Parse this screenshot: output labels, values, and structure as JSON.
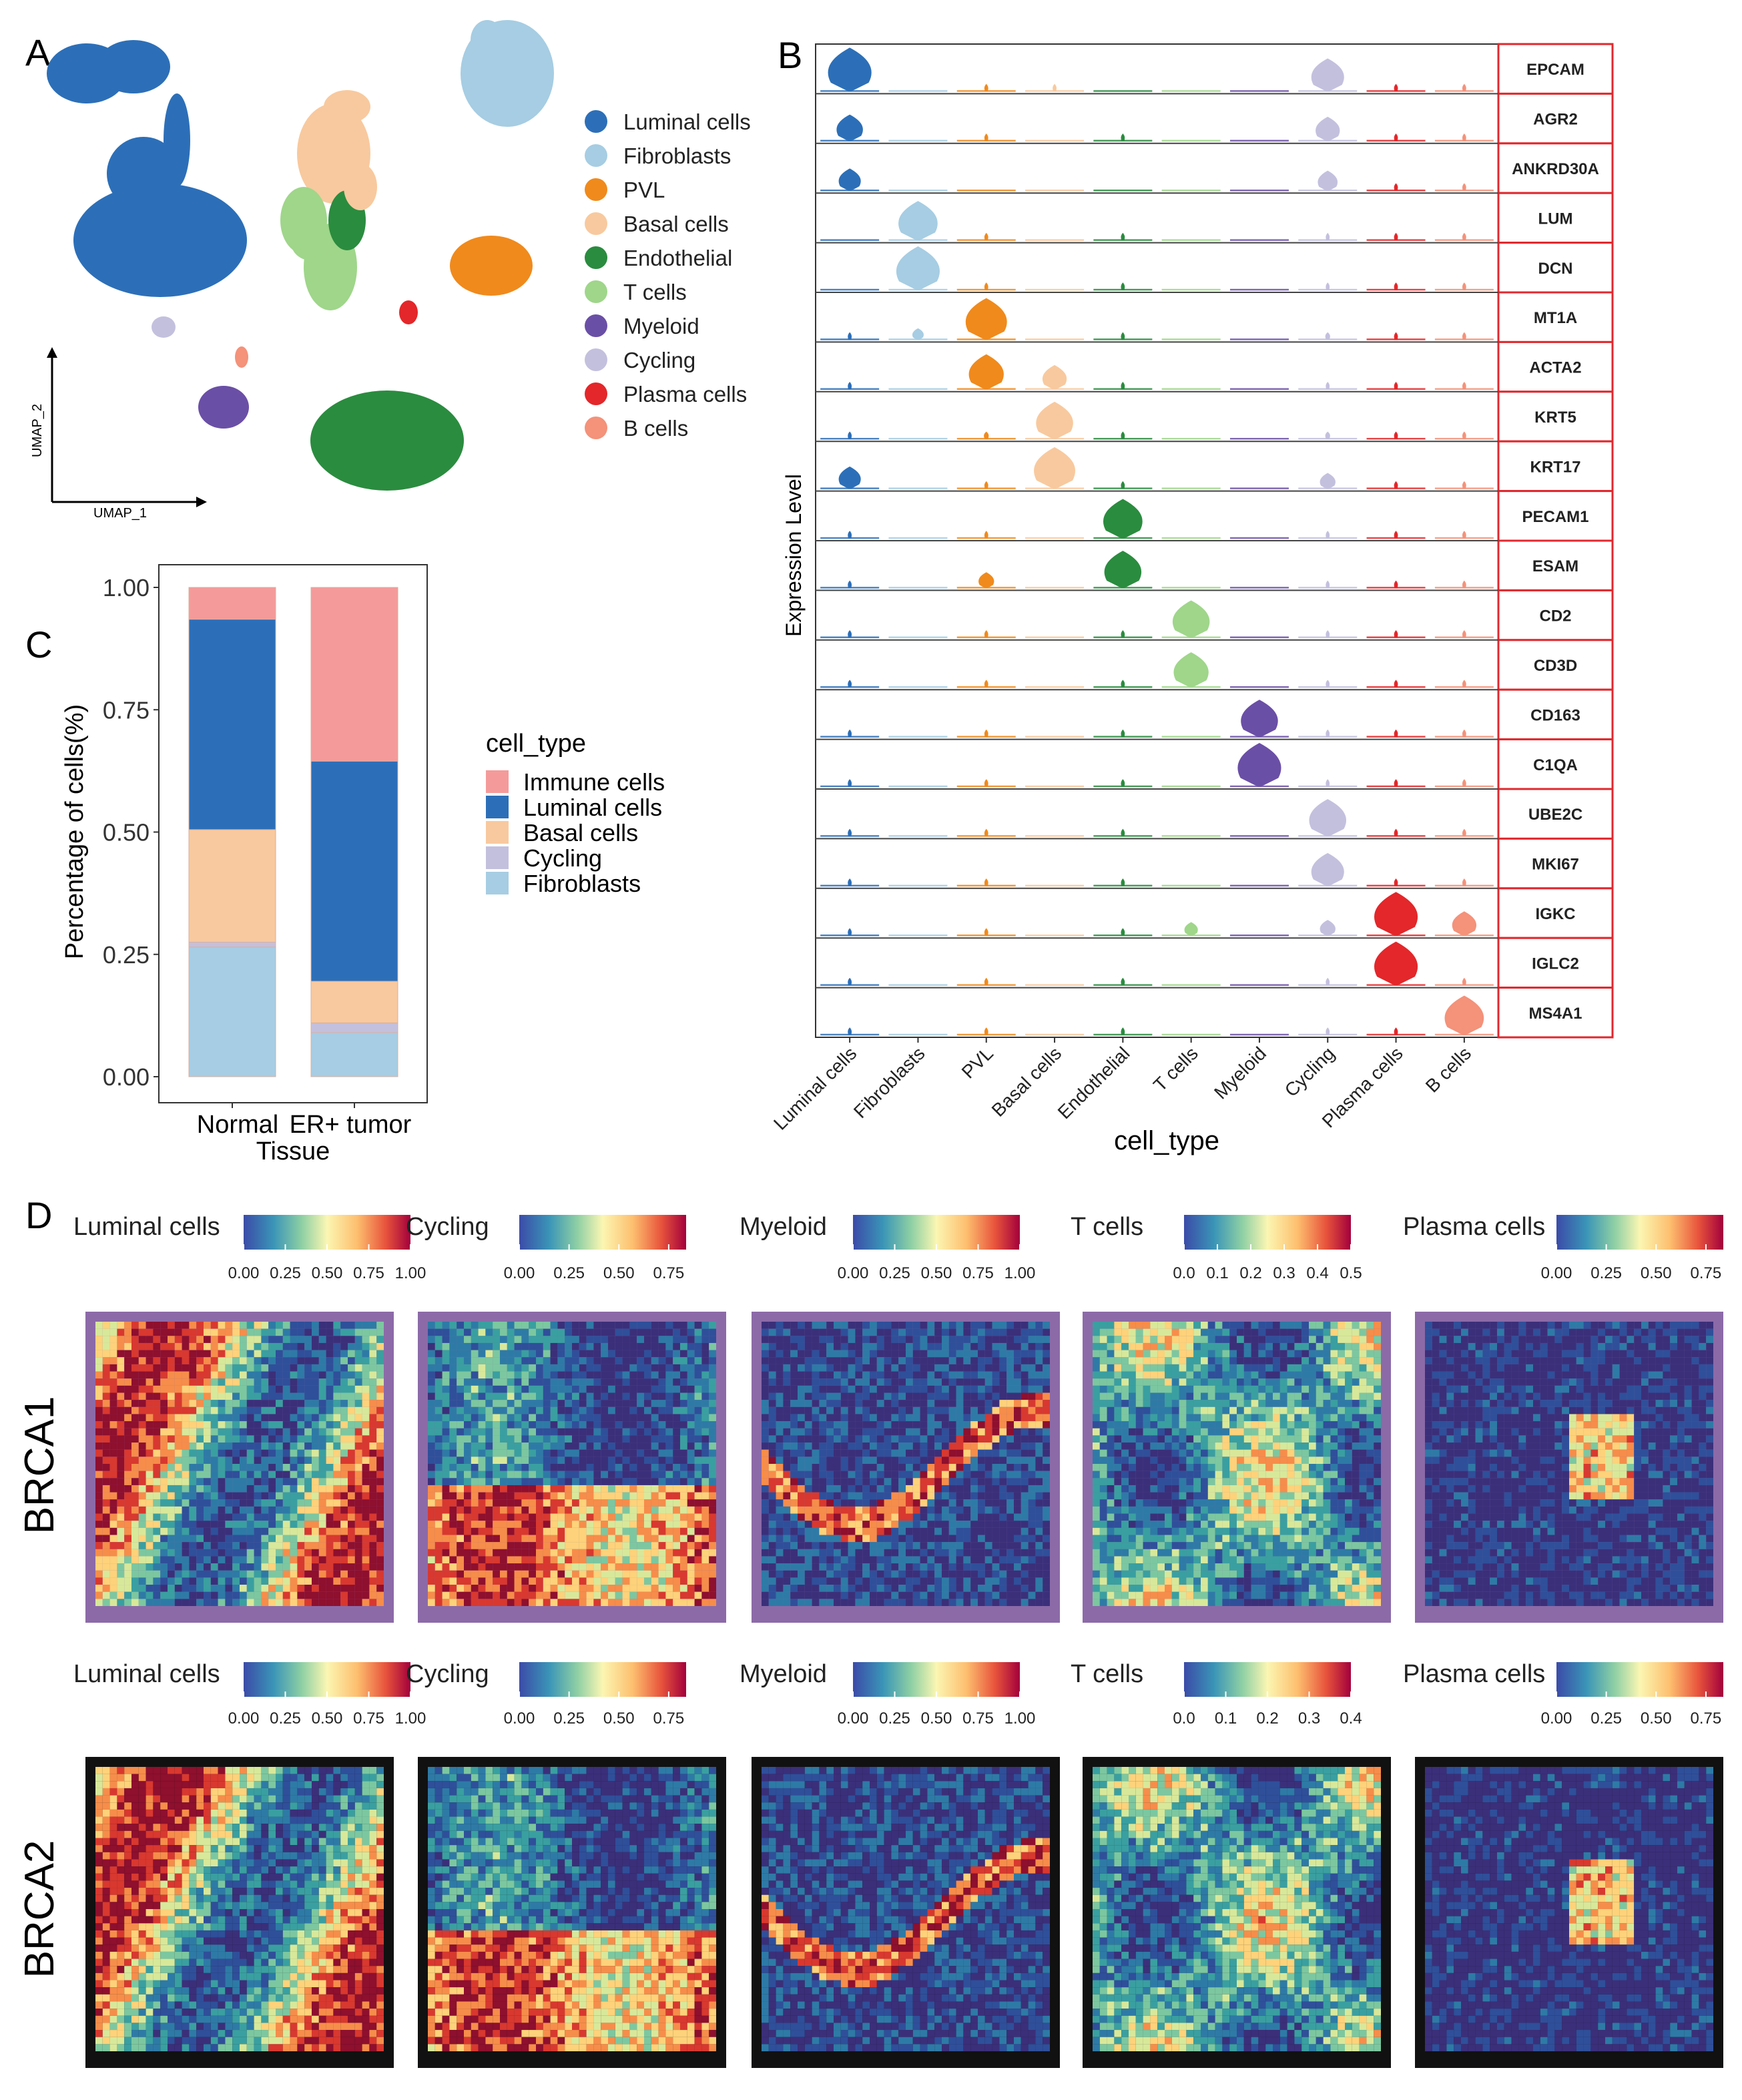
{
  "panel_labels": {
    "a": "A",
    "b": "B",
    "c": "C",
    "d": "D"
  },
  "chart_data": [
    {
      "panel": "A",
      "type": "scatter",
      "title": "",
      "xlabel": "UMAP_1",
      "ylabel": "UMAP_2",
      "legend": [
        {
          "name": "Luminal cells",
          "color": "#2c6fb8"
        },
        {
          "name": "Fibroblasts",
          "color": "#a6cde3"
        },
        {
          "name": "PVL",
          "color": "#f08a1c"
        },
        {
          "name": "Basal cells",
          "color": "#f8c99e"
        },
        {
          "name": "Endothelial",
          "color": "#2a8c3f"
        },
        {
          "name": "T cells",
          "color": "#9fd68a"
        },
        {
          "name": "Myeloid",
          "color": "#6a4fa6"
        },
        {
          "name": "Cycling",
          "color": "#c3c0de"
        },
        {
          "name": "Plasma cells",
          "color": "#e3272a"
        },
        {
          "name": "B cells",
          "color": "#f4927a"
        }
      ]
    },
    {
      "panel": "B",
      "type": "violin",
      "ylabel": "Expression Level",
      "xlabel": "cell_type",
      "categories": [
        "Luminal cells",
        "Fibroblasts",
        "PVL",
        "Basal cells",
        "Endothelial",
        "T cells",
        "Myeloid",
        "Cycling",
        "Plasma cells",
        "B cells"
      ],
      "category_colors": [
        "#2c6fb8",
        "#a6cde3",
        "#f08a1c",
        "#f8c99e",
        "#2a8c3f",
        "#9fd68a",
        "#6a4fa6",
        "#c3c0de",
        "#e3272a",
        "#f4927a"
      ],
      "genes": [
        "EPCAM",
        "AGR2",
        "ANKRD30A",
        "LUM",
        "DCN",
        "MT1A",
        "ACTA2",
        "KRT5",
        "KRT17",
        "PECAM1",
        "ESAM",
        "CD2",
        "CD3D",
        "CD163",
        "C1QA",
        "UBE2C",
        "MKI67",
        "IGKC",
        "IGLC2",
        "MS4A1"
      ],
      "relative_expression": [
        [
          1.0,
          0.0,
          0.05,
          0.05,
          0.0,
          0.0,
          0.0,
          0.75,
          0.05,
          0.05
        ],
        [
          0.6,
          0.0,
          0.05,
          0.0,
          0.05,
          0.0,
          0.0,
          0.55,
          0.05,
          0.05
        ],
        [
          0.5,
          0.0,
          0.0,
          0.0,
          0.0,
          0.0,
          0.0,
          0.45,
          0.05,
          0.05
        ],
        [
          0.0,
          0.9,
          0.05,
          0.0,
          0.05,
          0.0,
          0.0,
          0.05,
          0.05,
          0.05
        ],
        [
          0.0,
          1.0,
          0.05,
          0.0,
          0.05,
          0.0,
          0.0,
          0.05,
          0.05,
          0.05
        ],
        [
          0.05,
          0.25,
          0.95,
          0.0,
          0.05,
          0.0,
          0.0,
          0.1,
          0.05,
          0.05
        ],
        [
          0.05,
          0.0,
          0.8,
          0.55,
          0.05,
          0.0,
          0.0,
          0.05,
          0.05,
          0.05
        ],
        [
          0.05,
          0.0,
          0.1,
          0.85,
          0.05,
          0.0,
          0.0,
          0.1,
          0.05,
          0.05
        ],
        [
          0.5,
          0.0,
          0.05,
          0.95,
          0.05,
          0.0,
          0.0,
          0.35,
          0.05,
          0.05
        ],
        [
          0.05,
          0.0,
          0.05,
          0.0,
          0.9,
          0.0,
          0.0,
          0.05,
          0.05,
          0.05
        ],
        [
          0.05,
          0.0,
          0.35,
          0.0,
          0.85,
          0.0,
          0.0,
          0.05,
          0.05,
          0.05
        ],
        [
          0.05,
          0.0,
          0.05,
          0.0,
          0.05,
          0.85,
          0.0,
          0.05,
          0.05,
          0.05
        ],
        [
          0.05,
          0.0,
          0.05,
          0.0,
          0.05,
          0.8,
          0.0,
          0.05,
          0.05,
          0.05
        ],
        [
          0.05,
          0.0,
          0.05,
          0.0,
          0.05,
          0.0,
          0.85,
          0.05,
          0.05,
          0.05
        ],
        [
          0.05,
          0.0,
          0.05,
          0.0,
          0.05,
          0.0,
          1.0,
          0.05,
          0.05,
          0.05
        ],
        [
          0.05,
          0.0,
          0.05,
          0.0,
          0.05,
          0.0,
          0.0,
          0.85,
          0.05,
          0.05
        ],
        [
          0.05,
          0.0,
          0.05,
          0.0,
          0.05,
          0.0,
          0.0,
          0.75,
          0.05,
          0.05
        ],
        [
          0.05,
          0.0,
          0.05,
          0.0,
          0.05,
          0.3,
          0.0,
          0.35,
          1.0,
          0.55
        ],
        [
          0.05,
          0.0,
          0.05,
          0.0,
          0.05,
          0.0,
          0.0,
          0.05,
          1.0,
          0.05
        ],
        [
          0.05,
          0.0,
          0.05,
          0.0,
          0.05,
          0.0,
          0.0,
          0.05,
          0.05,
          0.9
        ]
      ]
    },
    {
      "panel": "C",
      "type": "bar",
      "stacked": true,
      "xlabel": "Tissue",
      "ylabel": "Percentage of cells(%)",
      "ylim": [
        0,
        1
      ],
      "yticks": [
        "0.00",
        "0.25",
        "0.50",
        "0.75",
        "1.00"
      ],
      "categories": [
        "Normal",
        "ER+ tumor"
      ],
      "legend_title": "cell_type",
      "series": [
        {
          "name": "Fibroblasts",
          "color": "#a6cde3",
          "values": [
            0.265,
            0.09
          ]
        },
        {
          "name": "Cycling",
          "color": "#c3c0de",
          "values": [
            0.01,
            0.02
          ]
        },
        {
          "name": "Basal cells",
          "color": "#f8c99e",
          "values": [
            0.23,
            0.085
          ]
        },
        {
          "name": "Luminal cells",
          "color": "#2c6fb8",
          "values": [
            0.43,
            0.45
          ]
        },
        {
          "name": "Immune cells",
          "color": "#f59a9a",
          "values": [
            0.065,
            0.355
          ]
        }
      ],
      "legend_order": [
        "Immune cells",
        "Luminal cells",
        "Basal cells",
        "Cycling",
        "Fibroblasts"
      ]
    },
    {
      "panel": "D",
      "type": "heatmap",
      "rows": [
        {
          "label": "BRCA1",
          "maps": [
            {
              "title": "Luminal cells",
              "ticks": [
                "0.00",
                "0.25",
                "0.50",
                "0.75",
                "1.00"
              ]
            },
            {
              "title": "Cycling",
              "ticks": [
                "0.00",
                "0.25",
                "0.50",
                "0.75"
              ]
            },
            {
              "title": "Myeloid",
              "ticks": [
                "0.00",
                "0.25",
                "0.50",
                "0.75",
                "1.00"
              ]
            },
            {
              "title": "T cells",
              "ticks": [
                "0.0",
                "0.1",
                "0.2",
                "0.3",
                "0.4",
                "0.5"
              ]
            },
            {
              "title": "Plasma cells",
              "ticks": [
                "0.00",
                "0.25",
                "0.50",
                "0.75"
              ]
            }
          ]
        },
        {
          "label": "BRCA2",
          "maps": [
            {
              "title": "Luminal cells",
              "ticks": [
                "0.00",
                "0.25",
                "0.50",
                "0.75",
                "1.00"
              ]
            },
            {
              "title": "Cycling",
              "ticks": [
                "0.00",
                "0.25",
                "0.50",
                "0.75"
              ]
            },
            {
              "title": "Myeloid",
              "ticks": [
                "0.00",
                "0.25",
                "0.50",
                "0.75",
                "1.00"
              ]
            },
            {
              "title": "T cells",
              "ticks": [
                "0.0",
                "0.1",
                "0.2",
                "0.3",
                "0.4"
              ]
            },
            {
              "title": "Plasma cells",
              "ticks": [
                "0.00",
                "0.25",
                "0.50",
                "0.75"
              ]
            }
          ]
        }
      ]
    }
  ]
}
